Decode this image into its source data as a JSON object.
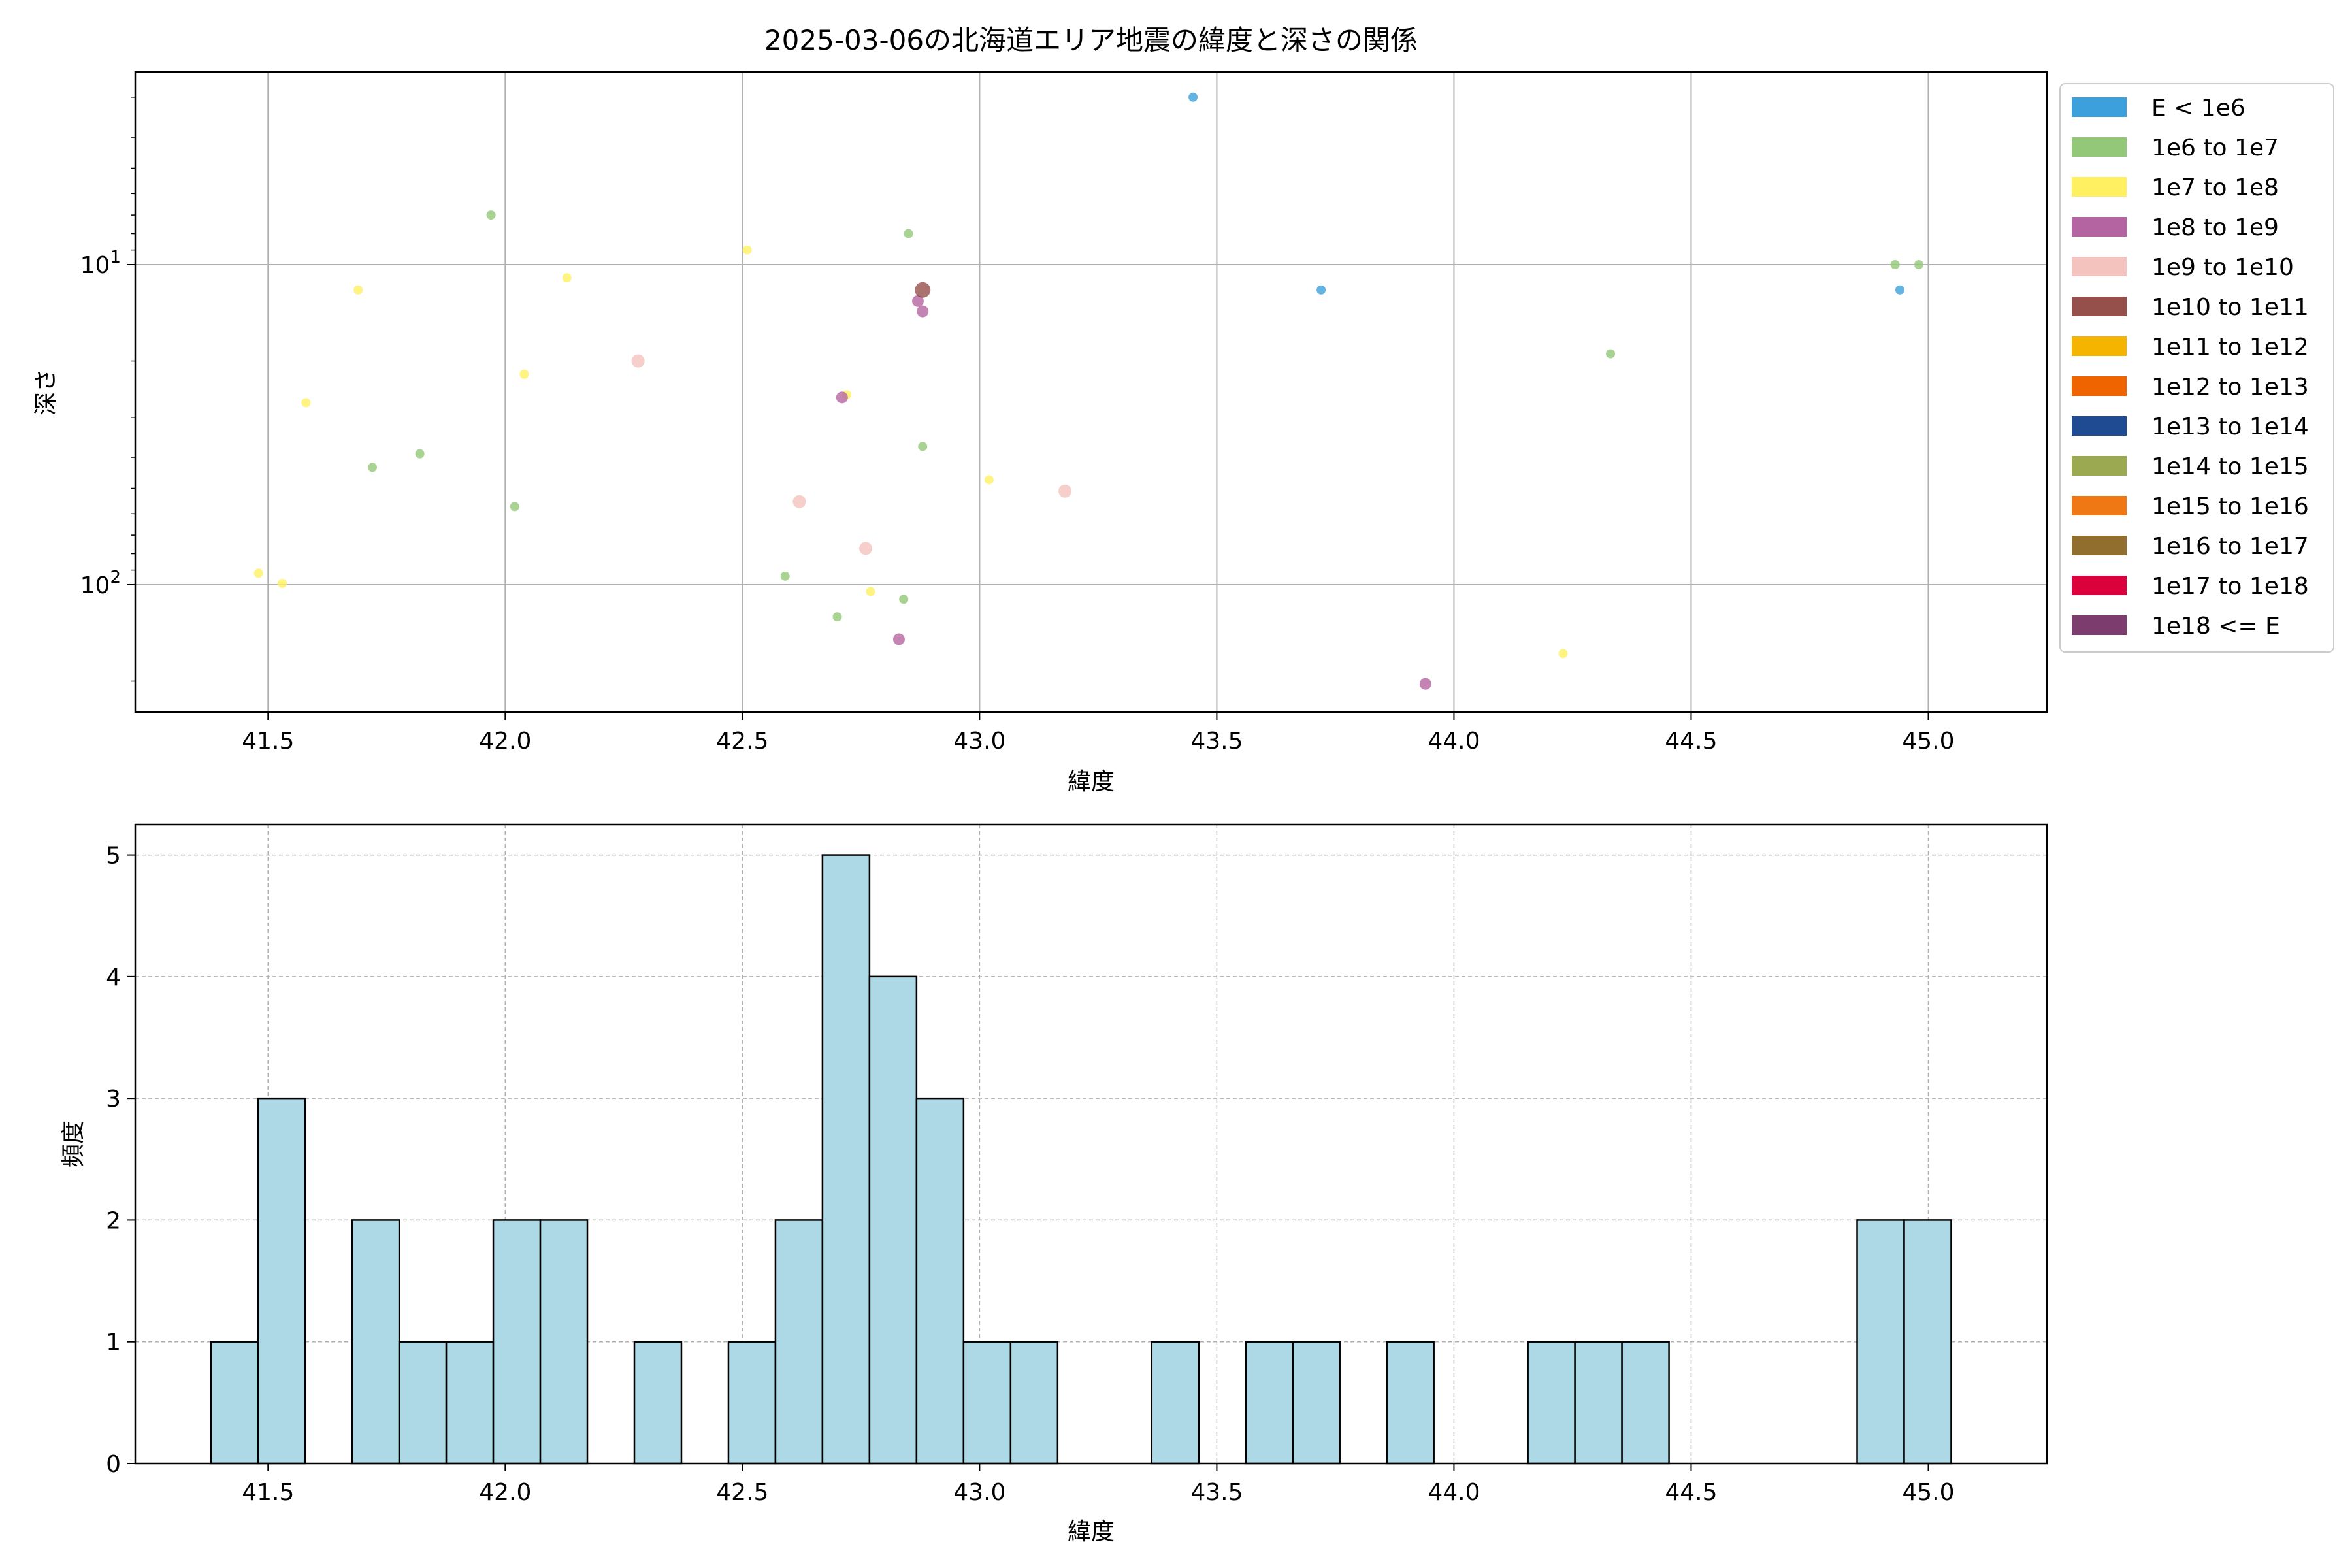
{
  "chart_data": [
    {
      "type": "scatter",
      "title": "2025-03-06の北海道エリア地震の緯度と深さの関係",
      "xlabel": "緯度",
      "ylabel": "深さ",
      "xlim": [
        41.22,
        45.25
      ],
      "ylim": [
        250,
        2.5
      ],
      "y_scale": "log",
      "y_inverted": true,
      "grid": true,
      "x_ticks": [
        "41.5",
        "42.0",
        "42.5",
        "43.0",
        "43.5",
        "44.0",
        "44.5",
        "45.0"
      ],
      "y_ticks": [
        {
          "value": 10,
          "base": "10",
          "exp": "1"
        },
        {
          "value": 100,
          "base": "10",
          "exp": "2"
        }
      ],
      "legend_position": "outside-right",
      "legend": [
        {
          "label": "E < 1e6",
          "color": "#3ca0dc"
        },
        {
          "label": "1e6 to 1e7",
          "color": "#92c878"
        },
        {
          "label": "1e7 to 1e8",
          "color": "#fff062"
        },
        {
          "label": "1e8 to 1e9",
          "color": "#b464a0"
        },
        {
          "label": "1e9 to 1e10",
          "color": "#f5c3bd"
        },
        {
          "label": "1e10 to 1e11",
          "color": "#96504b"
        },
        {
          "label": "1e11 to 1e12",
          "color": "#f5b400"
        },
        {
          "label": "1e12 to 1e13",
          "color": "#f06400"
        },
        {
          "label": "1e13 to 1e14",
          "color": "#1e4b91"
        },
        {
          "label": "1e14 to 1e15",
          "color": "#9baa50"
        },
        {
          "label": "1e15 to 1e16",
          "color": "#f07814"
        },
        {
          "label": "1e16 to 1e17",
          "color": "#916e2d"
        },
        {
          "label": "1e17 to 1e18",
          "color": "#dc003c"
        },
        {
          "label": "1e18 <= E",
          "color": "#7d3c6e"
        }
      ],
      "points": [
        {
          "x": 43.45,
          "y": 3.0,
          "class": 0
        },
        {
          "x": 43.72,
          "y": 12.0,
          "class": 0
        },
        {
          "x": 44.94,
          "y": 12.0,
          "class": 0
        },
        {
          "x": 41.97,
          "y": 7.0,
          "class": 1
        },
        {
          "x": 42.85,
          "y": 8.0,
          "class": 1
        },
        {
          "x": 44.93,
          "y": 10.0,
          "class": 1
        },
        {
          "x": 44.98,
          "y": 10.0,
          "class": 1
        },
        {
          "x": 44.33,
          "y": 19.0,
          "class": 1
        },
        {
          "x": 41.72,
          "y": 43.0,
          "class": 1
        },
        {
          "x": 41.82,
          "y": 39.0,
          "class": 1
        },
        {
          "x": 42.02,
          "y": 57.0,
          "class": 1
        },
        {
          "x": 42.88,
          "y": 37.0,
          "class": 1
        },
        {
          "x": 42.59,
          "y": 94.0,
          "class": 1
        },
        {
          "x": 42.7,
          "y": 126.0,
          "class": 1
        },
        {
          "x": 42.84,
          "y": 111.0,
          "class": 1
        },
        {
          "x": 42.51,
          "y": 9.0,
          "class": 2
        },
        {
          "x": 41.69,
          "y": 12.0,
          "class": 2
        },
        {
          "x": 42.13,
          "y": 11.0,
          "class": 2
        },
        {
          "x": 42.04,
          "y": 22.0,
          "class": 2
        },
        {
          "x": 41.58,
          "y": 27.0,
          "class": 2
        },
        {
          "x": 42.72,
          "y": 25.5,
          "class": 2
        },
        {
          "x": 43.02,
          "y": 47.0,
          "class": 2
        },
        {
          "x": 41.48,
          "y": 92.0,
          "class": 2
        },
        {
          "x": 41.53,
          "y": 99.0,
          "class": 2
        },
        {
          "x": 42.77,
          "y": 105.0,
          "class": 2
        },
        {
          "x": 44.23,
          "y": 164.0,
          "class": 2
        },
        {
          "x": 42.87,
          "y": 13.0,
          "class": 3
        },
        {
          "x": 42.88,
          "y": 14.0,
          "class": 3
        },
        {
          "x": 42.71,
          "y": 26.0,
          "class": 3
        },
        {
          "x": 42.83,
          "y": 148.0,
          "class": 3
        },
        {
          "x": 43.94,
          "y": 204.0,
          "class": 3
        },
        {
          "x": 42.28,
          "y": 20.0,
          "class": 4
        },
        {
          "x": 42.62,
          "y": 55.0,
          "class": 4
        },
        {
          "x": 43.18,
          "y": 51.0,
          "class": 4
        },
        {
          "x": 42.76,
          "y": 77.0,
          "class": 4
        },
        {
          "x": 42.88,
          "y": 12.0,
          "class": 5
        }
      ]
    },
    {
      "type": "bar",
      "xlabel": "緯度",
      "ylabel": "頻度",
      "xlim": [
        41.22,
        45.25
      ],
      "ylim": [
        0,
        5.25
      ],
      "grid": true,
      "grid_style": "dashed",
      "bar_color": "#add8e6",
      "edge_color": "#000000",
      "x_ticks": [
        "41.5",
        "42.0",
        "42.5",
        "43.0",
        "43.5",
        "44.0",
        "44.5",
        "45.0"
      ],
      "y_ticks": [
        "0",
        "1",
        "2",
        "3",
        "4",
        "5"
      ],
      "bin_start": 41.38,
      "bin_width": 0.09914,
      "counts": [
        1,
        3,
        0,
        2,
        1,
        1,
        2,
        2,
        0,
        1,
        0,
        1,
        2,
        5,
        4,
        3,
        1,
        1,
        0,
        0,
        1,
        0,
        1,
        1,
        0,
        1,
        0,
        0,
        1,
        1,
        1,
        0,
        0,
        0,
        0,
        2,
        2
      ]
    }
  ]
}
